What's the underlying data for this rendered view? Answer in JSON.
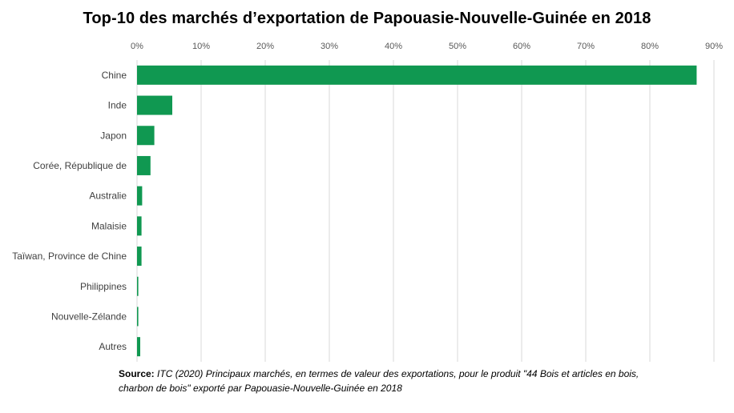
{
  "chart_data": {
    "type": "bar",
    "orientation": "horizontal",
    "title": "Top-10 des marchés d’exportation de Papouasie-Nouvelle-Guinée en 2018",
    "categories": [
      "Chine",
      "Inde",
      "Japon",
      "Corée, République de",
      "Australie",
      "Malaisie",
      "Taïwan, Province de Chine",
      "Philippines",
      "Nouvelle-Zélande",
      "Autres"
    ],
    "values": [
      87.3,
      5.5,
      2.7,
      2.1,
      0.8,
      0.7,
      0.7,
      0.2,
      0.2,
      0.5
    ],
    "xlim": [
      0,
      90
    ],
    "x_ticks": [
      0,
      10,
      20,
      30,
      40,
      50,
      60,
      70,
      80,
      90
    ],
    "x_tick_labels": [
      "0%",
      "10%",
      "20%",
      "30%",
      "40%",
      "50%",
      "60%",
      "70%",
      "80%",
      "90%"
    ],
    "x_axis_position": "top",
    "grid": true,
    "legend": "none",
    "bar_color": "#109851",
    "grid_color": "#d9d9d9"
  },
  "source": {
    "label": "Source:",
    "text": "ITC (2020) Principaux marchés, en termes de valeur des exportations, pour le produit \"44 Bois et articles en bois, charbon de bois\" exporté par Papouasie-Nouvelle-Guinée en 2018"
  }
}
